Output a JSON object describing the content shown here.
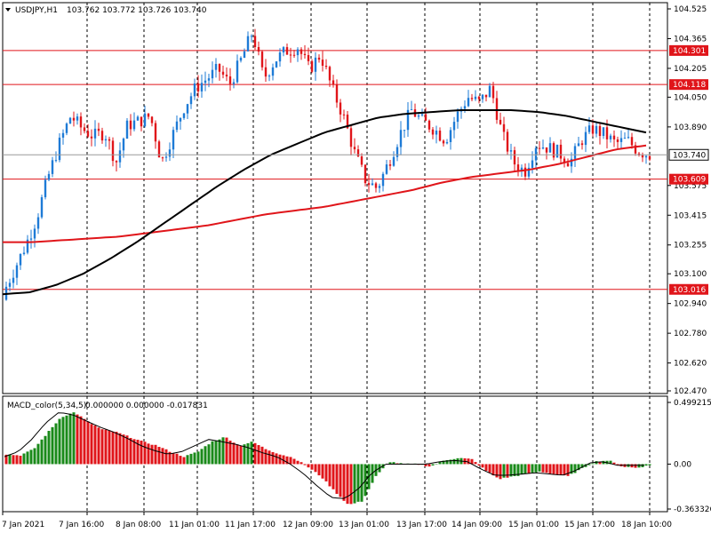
{
  "header": {
    "symbol": "USDJPY,H1",
    "ohlc": "103.762 103.772 103.726 103.740"
  },
  "macd_header": {
    "name": "MACD_color(5,34,5)",
    "values": "0.000000 0.000000 -0.017831"
  },
  "colors": {
    "bull": "#1e7bd6",
    "bear": "#e0151a",
    "ma_short": "#000000",
    "ma_long": "#e0151a",
    "hline": "#e0151a",
    "grid": "#000000",
    "macd_pos": "#1a8a1a",
    "macd_neg": "#e0151a"
  },
  "chart_data": [
    {
      "type": "candlestick",
      "symbol": "USDJPY",
      "timeframe": "H1",
      "ylim": [
        102.47,
        104.525
      ],
      "y_ticks": [
        "104.525",
        "104.365",
        "104.205",
        "104.050",
        "103.890",
        "103.575",
        "103.415",
        "103.255",
        "103.100",
        "102.940",
        "102.780",
        "102.620",
        "102.470"
      ],
      "x_ticks": [
        "7 Jan 2021",
        "7 Jan 16:00",
        "8 Jan 08:00",
        "11 Jan 01:00",
        "11 Jan 17:00",
        "12 Jan 09:00",
        "13 Jan 01:00",
        "13 Jan 17:00",
        "14 Jan 09:00",
        "15 Jan 01:00",
        "15 Jan 17:00",
        "18 Jan 10:00"
      ],
      "price_levels": [
        "104.301",
        "104.118",
        "103.609",
        "103.016"
      ],
      "current_price": "103.740",
      "close_path": [
        102.99,
        103.12,
        103.25,
        103.4,
        103.62,
        103.8,
        103.95,
        103.88,
        103.84,
        103.86,
        103.7,
        103.9,
        103.92,
        103.95,
        103.7,
        103.85,
        104.0,
        104.1,
        104.15,
        104.2,
        104.12,
        104.25,
        104.4,
        104.15,
        104.25,
        104.3,
        104.32,
        104.2,
        104.28,
        104.1,
        103.95,
        103.75,
        103.6,
        103.56,
        103.7,
        103.85,
        103.98,
        103.92,
        103.88,
        103.82,
        103.95,
        104.05,
        104.02,
        104.1,
        103.85,
        103.7,
        103.65,
        103.8,
        103.78,
        103.75,
        103.7,
        103.82,
        103.88,
        103.85,
        103.8,
        103.82,
        103.76,
        103.74
      ],
      "ma_short_path": [
        102.99,
        103.0,
        103.04,
        103.1,
        103.18,
        103.27,
        103.37,
        103.47,
        103.57,
        103.66,
        103.74,
        103.8,
        103.86,
        103.9,
        103.94,
        103.96,
        103.97,
        103.98,
        103.98,
        103.98,
        103.97,
        103.95,
        103.92,
        103.89,
        103.86
      ],
      "ma_long_path": [
        103.27,
        103.27,
        103.28,
        103.29,
        103.3,
        103.32,
        103.34,
        103.36,
        103.39,
        103.42,
        103.44,
        103.46,
        103.49,
        103.52,
        103.55,
        103.59,
        103.62,
        103.64,
        103.66,
        103.69,
        103.73,
        103.77,
        103.79
      ]
    },
    {
      "type": "bar",
      "name": "MACD_color(5,34,5)",
      "ylim": [
        -0.363326,
        0.499215
      ],
      "y_ticks": [
        "0.499215",
        "0.00",
        "-0.363326"
      ],
      "histogram_path": [
        0.08,
        0.07,
        0.12,
        0.25,
        0.38,
        0.42,
        0.34,
        0.28,
        0.26,
        0.22,
        0.18,
        0.15,
        0.1,
        0.06,
        0.1,
        0.18,
        0.22,
        0.15,
        0.18,
        0.12,
        0.08,
        0.05,
        -0.02,
        -0.1,
        -0.22,
        -0.33,
        -0.3,
        -0.1,
        0.02,
        0.0,
        0.0,
        -0.02,
        0.03,
        0.05,
        0.04,
        -0.05,
        -0.12,
        -0.1,
        -0.08,
        -0.06,
        -0.08,
        -0.1,
        -0.04,
        0.02,
        0.03,
        -0.02,
        -0.03,
        -0.01
      ],
      "signal_path": [
        0.06,
        0.1,
        0.2,
        0.33,
        0.42,
        0.4,
        0.35,
        0.3,
        0.26,
        0.21,
        0.15,
        0.11,
        0.08,
        0.1,
        0.15,
        0.2,
        0.18,
        0.16,
        0.13,
        0.09,
        0.06,
        0.0,
        -0.08,
        -0.18,
        -0.27,
        -0.28,
        -0.2,
        -0.07,
        0.0,
        0.0,
        0.0,
        0.0,
        0.02,
        0.03,
        0.02,
        -0.04,
        -0.09,
        -0.09,
        -0.08,
        -0.07,
        -0.08,
        -0.09,
        -0.05,
        0.01,
        0.02,
        -0.01,
        -0.01,
        -0.01
      ]
    }
  ]
}
